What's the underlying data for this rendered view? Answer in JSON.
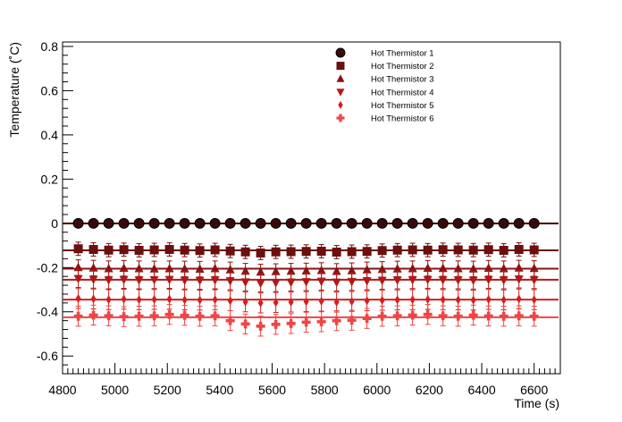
{
  "chart_data": {
    "type": "scatter",
    "title": "",
    "xlabel": "Time (s)",
    "ylabel": "Temperature (˚C)",
    "xlim": [
      4800,
      6700
    ],
    "ylim": [
      -0.68,
      0.82
    ],
    "x_ticks": [
      4800,
      5000,
      5200,
      5400,
      5600,
      5800,
      6000,
      6200,
      6400,
      6600
    ],
    "y_ticks": [
      -0.6,
      -0.4,
      -0.2,
      0,
      0.2,
      0.4,
      0.6,
      0.8
    ],
    "legend_position": "top-right",
    "x": [
      4860,
      4918,
      4976,
      5034,
      5092,
      5150,
      5208,
      5266,
      5324,
      5382,
      5440,
      5498,
      5556,
      5614,
      5672,
      5730,
      5788,
      5846,
      5904,
      5962,
      6020,
      6078,
      6136,
      6194,
      6252,
      6310,
      6368,
      6426,
      6484,
      6542,
      6600
    ],
    "series": [
      {
        "name": "Hot Thermistor 1",
        "marker": "circle",
        "color": "#3a0a0a",
        "fit": 0.0,
        "values": [
          0,
          0,
          0,
          0,
          0,
          0,
          0,
          0,
          0,
          0,
          0,
          0,
          0,
          0,
          0,
          0,
          0,
          0,
          0,
          0,
          0,
          0,
          0,
          0,
          0,
          0,
          0,
          0,
          0,
          0,
          0
        ],
        "error": 0.005
      },
      {
        "name": "Hot Thermistor 2",
        "marker": "square",
        "color": "#6b0f0f",
        "fit": -0.122,
        "values": [
          -0.115,
          -0.118,
          -0.121,
          -0.119,
          -0.122,
          -0.12,
          -0.118,
          -0.121,
          -0.123,
          -0.12,
          -0.125,
          -0.129,
          -0.134,
          -0.129,
          -0.128,
          -0.127,
          -0.126,
          -0.13,
          -0.128,
          -0.127,
          -0.123,
          -0.121,
          -0.12,
          -0.121,
          -0.119,
          -0.12,
          -0.121,
          -0.119,
          -0.122,
          -0.118,
          -0.12
        ],
        "error": 0.03
      },
      {
        "name": "Hot Thermistor 3",
        "marker": "triangle-up",
        "color": "#8b1212",
        "fit": -0.205,
        "values": [
          -0.2,
          -0.202,
          -0.205,
          -0.203,
          -0.205,
          -0.206,
          -0.205,
          -0.206,
          -0.207,
          -0.205,
          -0.21,
          -0.216,
          -0.22,
          -0.218,
          -0.216,
          -0.215,
          -0.213,
          -0.217,
          -0.214,
          -0.21,
          -0.208,
          -0.206,
          -0.205,
          -0.203,
          -0.204,
          -0.205,
          -0.206,
          -0.203,
          -0.205,
          -0.202,
          -0.204
        ],
        "error": 0.035
      },
      {
        "name": "Hot Thermistor 4",
        "marker": "triangle-down",
        "color": "#b21818",
        "fit": -0.255,
        "values": [
          -0.25,
          -0.253,
          -0.256,
          -0.254,
          -0.256,
          -0.255,
          -0.254,
          -0.257,
          -0.258,
          -0.256,
          -0.26,
          -0.265,
          -0.27,
          -0.268,
          -0.266,
          -0.264,
          -0.262,
          -0.266,
          -0.263,
          -0.26,
          -0.258,
          -0.256,
          -0.255,
          -0.254,
          -0.255,
          -0.256,
          -0.257,
          -0.254,
          -0.256,
          -0.252,
          -0.255
        ],
        "error": 0.04
      },
      {
        "name": "Hot Thermistor 5",
        "marker": "diamond",
        "color": "#d41f1f",
        "fit": -0.345,
        "values": [
          -0.34,
          -0.342,
          -0.345,
          -0.343,
          -0.345,
          -0.344,
          -0.343,
          -0.346,
          -0.347,
          -0.345,
          -0.35,
          -0.355,
          -0.36,
          -0.358,
          -0.356,
          -0.354,
          -0.352,
          -0.356,
          -0.353,
          -0.35,
          -0.348,
          -0.346,
          -0.345,
          -0.344,
          -0.345,
          -0.346,
          -0.347,
          -0.344,
          -0.346,
          -0.342,
          -0.345
        ],
        "error": 0.045
      },
      {
        "name": "Hot Thermistor 6",
        "marker": "cross",
        "color": "#f04545",
        "fit": -0.425,
        "values": [
          -0.42,
          -0.415,
          -0.418,
          -0.422,
          -0.42,
          -0.418,
          -0.412,
          -0.416,
          -0.42,
          -0.418,
          -0.44,
          -0.455,
          -0.465,
          -0.457,
          -0.453,
          -0.447,
          -0.445,
          -0.44,
          -0.438,
          -0.43,
          -0.42,
          -0.418,
          -0.415,
          -0.412,
          -0.418,
          -0.42,
          -0.415,
          -0.419,
          -0.42,
          -0.418,
          -0.42
        ],
        "error": 0.045
      }
    ]
  }
}
